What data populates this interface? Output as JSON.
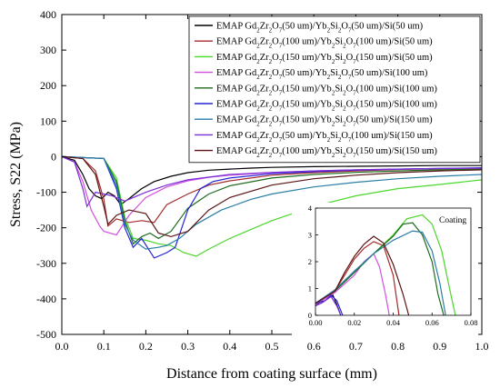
{
  "chart_data": {
    "type": "line",
    "xlabel": "Distance from coating surface (mm)",
    "ylabel": "Stress, S22 (MPa)",
    "xlim": [
      0.0,
      1.0
    ],
    "ylim": [
      -500,
      400
    ],
    "xticks": [
      "0.0",
      "0.1",
      "0.2",
      "0.3",
      "0.4",
      "0.5",
      "0.6",
      "0.7",
      "0.8",
      "0.9",
      "1.0"
    ],
    "yticks": [
      "400",
      "300",
      "200",
      "100",
      "0",
      "-100",
      "-200",
      "-300",
      "-400",
      "-500"
    ],
    "legend_position": "top-right",
    "series": [
      {
        "name": "EMAP Gd2Zr2O7(50 um)/Yb2Si2O7(50 um)/Si(50 um)",
        "color": "#000000",
        "x": [
          0,
          0.03,
          0.05,
          0.065,
          0.08,
          0.095,
          0.11,
          0.125,
          0.14,
          0.16,
          0.19,
          0.22,
          0.26,
          0.3,
          0.35,
          0.4,
          0.45,
          0.5,
          0.6,
          0.7,
          0.8,
          0.9,
          1.0
        ],
        "y": [
          0,
          -10,
          -50,
          -90,
          -110,
          -118,
          -100,
          -110,
          -135,
          -118,
          -90,
          -70,
          -55,
          -45,
          -38,
          -35,
          -32,
          -30,
          -28,
          -27,
          -26,
          -25,
          -25
        ]
      },
      {
        "name": "EMAP Gd2Zr2O7(100 um)/Yb2Si2O7(100 um)/Si(50 um)",
        "color": "#a52a2a",
        "x": [
          0,
          0.05,
          0.08,
          0.1,
          0.11,
          0.13,
          0.16,
          0.19,
          0.22,
          0.25,
          0.3,
          0.35,
          0.4,
          0.5,
          0.6,
          0.7,
          0.8,
          0.9,
          1.0
        ],
        "y": [
          0,
          -5,
          -40,
          -120,
          -195,
          -175,
          -185,
          -180,
          -185,
          -135,
          -105,
          -80,
          -68,
          -52,
          -45,
          -40,
          -36,
          -34,
          -32
        ]
      },
      {
        "name": "EMAP Gd2Zr2O7(150 um)/Yb2Si2O7(150 um)/Si(50 um)",
        "color": "#4cd62c",
        "x": [
          0,
          0.1,
          0.13,
          0.15,
          0.17,
          0.2,
          0.23,
          0.26,
          0.29,
          0.32,
          0.35,
          0.4,
          0.5,
          0.6,
          0.7,
          0.8,
          0.9,
          1.0
        ],
        "y": [
          0,
          -5,
          -60,
          -170,
          -230,
          -235,
          -245,
          -250,
          -270,
          -280,
          -260,
          -230,
          -180,
          -140,
          -110,
          -90,
          -78,
          -65
        ]
      },
      {
        "name": "EMAP Gd2Zr2O7(50 um)/Yb2Si2O7(50 um)/Si(100 um)",
        "color": "#d14fe0",
        "x": [
          0,
          0.03,
          0.05,
          0.07,
          0.09,
          0.1,
          0.13,
          0.16,
          0.2,
          0.25,
          0.3,
          0.35,
          0.4,
          0.5,
          0.6,
          0.7,
          0.8,
          0.9,
          1.0
        ],
        "y": [
          0,
          -15,
          -70,
          -150,
          -195,
          -210,
          -220,
          -165,
          -115,
          -85,
          -68,
          -58,
          -52,
          -45,
          -40,
          -37,
          -35,
          -34,
          -33
        ]
      },
      {
        "name": "EMAP Gd2Zr2O7(150 um)/Yb2Si2O7(100 um)/Si(100 um)",
        "color": "#1e6b1e",
        "x": [
          0,
          0.1,
          0.13,
          0.15,
          0.17,
          0.19,
          0.21,
          0.23,
          0.26,
          0.3,
          0.35,
          0.4,
          0.5,
          0.6,
          0.7,
          0.8,
          0.9,
          1.0
        ],
        "y": [
          0,
          -5,
          -70,
          -180,
          -245,
          -225,
          -215,
          -230,
          -210,
          -145,
          -105,
          -82,
          -60,
          -50,
          -44,
          -40,
          -37,
          -35
        ]
      },
      {
        "name": "EMAP Gd2Zr2O7(150 um)/Yb2Si2O7(150 um)/Si(100 um)",
        "color": "#2424d4",
        "x": [
          0,
          0.1,
          0.13,
          0.15,
          0.17,
          0.19,
          0.22,
          0.25,
          0.27,
          0.3,
          0.33,
          0.36,
          0.4,
          0.5,
          0.6,
          0.7,
          0.8,
          0.9,
          1.0
        ],
        "y": [
          0,
          -5,
          -90,
          -200,
          -255,
          -230,
          -285,
          -270,
          -255,
          -150,
          -90,
          -70,
          -60,
          -48,
          -42,
          -38,
          -35,
          -33,
          -31
        ]
      },
      {
        "name": "EMAP Gd2Zr2O7(150 um)/Yb2Si2O7(50 um)/Si(150 um)",
        "color": "#2a7ea6",
        "x": [
          0,
          0.1,
          0.13,
          0.15,
          0.17,
          0.2,
          0.23,
          0.25,
          0.28,
          0.32,
          0.38,
          0.45,
          0.5,
          0.6,
          0.7,
          0.8,
          0.9,
          1.0
        ],
        "y": [
          0,
          -5,
          -80,
          -190,
          -235,
          -260,
          -255,
          -250,
          -230,
          -190,
          -150,
          -120,
          -105,
          -85,
          -72,
          -62,
          -55,
          -50
        ]
      },
      {
        "name": "EMAP Gd2Zr2O7(50 um)/Yb2Si2O7(100 um)/Si(150 um)",
        "color": "#7b2fd6",
        "x": [
          0,
          0.03,
          0.05,
          0.06,
          0.08,
          0.1,
          0.12,
          0.15,
          0.2,
          0.25,
          0.3,
          0.4,
          0.5,
          0.6,
          0.7,
          0.8,
          0.9,
          1.0
        ],
        "y": [
          0,
          -15,
          -90,
          -140,
          -100,
          -105,
          -110,
          -125,
          -100,
          -80,
          -65,
          -50,
          -44,
          -40,
          -37,
          -35,
          -33,
          -32
        ]
      },
      {
        "name": "EMAP Gd2Zr2O7(100 um)/Yb2Si2O7(150 um)/Si(150 um)",
        "color": "#5a1414",
        "x": [
          0,
          0.05,
          0.08,
          0.1,
          0.11,
          0.13,
          0.16,
          0.2,
          0.23,
          0.26,
          0.3,
          0.35,
          0.4,
          0.5,
          0.6,
          0.7,
          0.8,
          0.9,
          1.0
        ],
        "y": [
          0,
          -5,
          -50,
          -140,
          -190,
          -165,
          -150,
          -160,
          -215,
          -225,
          -210,
          -150,
          -115,
          -80,
          -62,
          -52,
          -45,
          -40,
          -37
        ]
      }
    ],
    "inset": {
      "title": "Coating",
      "xlim": [
        0.0,
        0.08
      ],
      "ylim": [
        0,
        4
      ],
      "xticks": [
        "0.00",
        "0.02",
        "0.04",
        "0.06",
        "0.08"
      ],
      "yticks": [
        "0",
        "1",
        "2",
        "3",
        "4"
      ],
      "series": [
        {
          "color": "#000000",
          "x": [
            0,
            0.003,
            0.006,
            0.009,
            0.011,
            0.013
          ],
          "y": [
            0.4,
            0.45,
            0.6,
            0.75,
            0.4,
            0
          ]
        },
        {
          "color": "#a52a2a",
          "x": [
            0,
            0.01,
            0.015,
            0.02,
            0.025,
            0.03,
            0.035,
            0.04,
            0.043
          ],
          "y": [
            0.4,
            0.9,
            1.5,
            2.1,
            2.5,
            2.75,
            2.6,
            1.5,
            0
          ]
        },
        {
          "color": "#4cd62c",
          "x": [
            0,
            0.01,
            0.02,
            0.03,
            0.04,
            0.047,
            0.055,
            0.06,
            0.065,
            0.069,
            0.072
          ],
          "y": [
            0.45,
            0.9,
            1.6,
            2.3,
            3.0,
            3.6,
            3.75,
            3.4,
            2.4,
            1.0,
            0
          ]
        },
        {
          "color": "#d14fe0",
          "x": [
            0,
            0.01,
            0.02,
            0.025,
            0.03,
            0.033,
            0.036,
            0.038
          ],
          "y": [
            0.4,
            0.85,
            1.5,
            2.0,
            2.3,
            1.8,
            0.8,
            0
          ]
        },
        {
          "color": "#1e6b1e",
          "x": [
            0,
            0.01,
            0.02,
            0.03,
            0.04,
            0.045,
            0.05,
            0.055,
            0.06,
            0.063,
            0.066
          ],
          "y": [
            0.45,
            0.9,
            1.6,
            2.3,
            2.95,
            3.4,
            3.45,
            3.0,
            2.0,
            0.8,
            0
          ]
        },
        {
          "color": "#2424d4",
          "x": [
            0,
            0.005,
            0.008,
            0.011,
            0.014
          ],
          "y": [
            0.45,
            0.55,
            0.75,
            0.55,
            0
          ]
        },
        {
          "color": "#2a7ea6",
          "x": [
            0,
            0.01,
            0.02,
            0.03,
            0.04,
            0.05,
            0.055,
            0.06,
            0.064,
            0.067
          ],
          "y": [
            0.45,
            0.95,
            1.65,
            2.3,
            2.8,
            3.15,
            3.1,
            2.4,
            1.2,
            0
          ]
        },
        {
          "color": "#7b2fd6",
          "x": [
            0,
            0.004,
            0.008,
            0.011,
            0.013
          ],
          "y": [
            0.35,
            0.5,
            0.7,
            0.35,
            0
          ]
        },
        {
          "color": "#5a1414",
          "x": [
            0,
            0.01,
            0.015,
            0.02,
            0.025,
            0.03,
            0.035,
            0.04,
            0.045,
            0.048
          ],
          "y": [
            0.45,
            0.9,
            1.6,
            2.2,
            2.65,
            2.95,
            2.7,
            1.9,
            0.8,
            0
          ]
        }
      ]
    }
  },
  "legend_labels": [
    {
      "pre": "EMAP Gd",
      "parts": [
        [
          "t",
          "EMAP Gd"
        ],
        [
          "s",
          "2"
        ],
        [
          "t",
          "Zr"
        ],
        [
          "s",
          "2"
        ],
        [
          "t",
          "O"
        ],
        [
          "s",
          "7"
        ],
        [
          "t",
          "(50 um)/Yb"
        ],
        [
          "s",
          "2"
        ],
        [
          "t",
          "Si"
        ],
        [
          "s",
          "2"
        ],
        [
          "t",
          "O"
        ],
        [
          "s",
          "7"
        ],
        [
          "t",
          "(50 um)/Si(50 um)"
        ]
      ]
    },
    {
      "parts": [
        [
          "t",
          "EMAP Gd"
        ],
        [
          "s",
          "2"
        ],
        [
          "t",
          "Zr"
        ],
        [
          "s",
          "2"
        ],
        [
          "t",
          "O"
        ],
        [
          "s",
          "7"
        ],
        [
          "t",
          "(100 um)/Yb"
        ],
        [
          "s",
          "2"
        ],
        [
          "t",
          "Si"
        ],
        [
          "s",
          "2"
        ],
        [
          "t",
          "O"
        ],
        [
          "s",
          "7"
        ],
        [
          "t",
          "(100 um)/Si(50 um)"
        ]
      ]
    },
    {
      "parts": [
        [
          "t",
          "EMAP Gd"
        ],
        [
          "s",
          "2"
        ],
        [
          "t",
          "Zr"
        ],
        [
          "s",
          "2"
        ],
        [
          "t",
          "O"
        ],
        [
          "s",
          "7"
        ],
        [
          "t",
          "(150 um)/Yb"
        ],
        [
          "s",
          "2"
        ],
        [
          "t",
          "Si"
        ],
        [
          "s",
          "2"
        ],
        [
          "t",
          "O"
        ],
        [
          "s",
          "7"
        ],
        [
          "t",
          "(150 um)/Si(50 um)"
        ]
      ]
    },
    {
      "parts": [
        [
          "t",
          "EMAP Gd"
        ],
        [
          "s",
          "2"
        ],
        [
          "t",
          "Zr"
        ],
        [
          "s",
          "2"
        ],
        [
          "t",
          "O"
        ],
        [
          "s",
          "7"
        ],
        [
          "t",
          "(50 um)/Yb"
        ],
        [
          "s",
          "2"
        ],
        [
          "t",
          "Si"
        ],
        [
          "s",
          "2"
        ],
        [
          "t",
          "O"
        ],
        [
          "s",
          "7"
        ],
        [
          "t",
          "(50 um)/Si(100 um)"
        ]
      ]
    },
    {
      "parts": [
        [
          "t",
          "EMAP Gd"
        ],
        [
          "s",
          "2"
        ],
        [
          "t",
          "Zr"
        ],
        [
          "s",
          "2"
        ],
        [
          "t",
          "O"
        ],
        [
          "s",
          "7"
        ],
        [
          "t",
          "(150 um)/Yb"
        ],
        [
          "s",
          "2"
        ],
        [
          "t",
          "Si"
        ],
        [
          "s",
          "2"
        ],
        [
          "t",
          "O"
        ],
        [
          "s",
          "7"
        ],
        [
          "t",
          "(100 um)/Si(100 um)"
        ]
      ]
    },
    {
      "parts": [
        [
          "t",
          "EMAP Gd"
        ],
        [
          "s",
          "2"
        ],
        [
          "t",
          "Zr"
        ],
        [
          "s",
          "2"
        ],
        [
          "t",
          "O"
        ],
        [
          "s",
          "7"
        ],
        [
          "t",
          "(150 um)/Yb"
        ],
        [
          "s",
          "2"
        ],
        [
          "t",
          "Si"
        ],
        [
          "s",
          "2"
        ],
        [
          "t",
          "O"
        ],
        [
          "s",
          "7"
        ],
        [
          "t",
          "(150 um)/Si(100 um)"
        ]
      ]
    },
    {
      "parts": [
        [
          "t",
          "EMAP Gd"
        ],
        [
          "s",
          "2"
        ],
        [
          "t",
          "Zr"
        ],
        [
          "s",
          "2"
        ],
        [
          "t",
          "O"
        ],
        [
          "s",
          "7"
        ],
        [
          "t",
          "(150 um)/Yb"
        ],
        [
          "s",
          "2"
        ],
        [
          "t",
          "Si"
        ],
        [
          "s",
          "2"
        ],
        [
          "t",
          "O"
        ],
        [
          "s",
          "7"
        ],
        [
          "t",
          "(50 um)/Si(150 um)"
        ]
      ]
    },
    {
      "parts": [
        [
          "t",
          "EMAP Gd"
        ],
        [
          "s",
          "2"
        ],
        [
          "t",
          "Zr"
        ],
        [
          "s",
          "2"
        ],
        [
          "t",
          "O"
        ],
        [
          "s",
          "7"
        ],
        [
          "t",
          "(50 um)/Yb"
        ],
        [
          "s",
          "2"
        ],
        [
          "t",
          "Si"
        ],
        [
          "s",
          "2"
        ],
        [
          "t",
          "O"
        ],
        [
          "s",
          "7"
        ],
        [
          "t",
          "(100 um)/Si(150 um)"
        ]
      ]
    },
    {
      "parts": [
        [
          "t",
          "EMAP Gd"
        ],
        [
          "s",
          "2"
        ],
        [
          "t",
          "Zr"
        ],
        [
          "s",
          "2"
        ],
        [
          "t",
          "O"
        ],
        [
          "s",
          "7"
        ],
        [
          "t",
          "(100 um)/Yb"
        ],
        [
          "s",
          "2"
        ],
        [
          "t",
          "Si"
        ],
        [
          "s",
          "2"
        ],
        [
          "t",
          "O"
        ],
        [
          "s",
          "7"
        ],
        [
          "t",
          "(150 um)/Si(150 um)"
        ]
      ]
    }
  ]
}
